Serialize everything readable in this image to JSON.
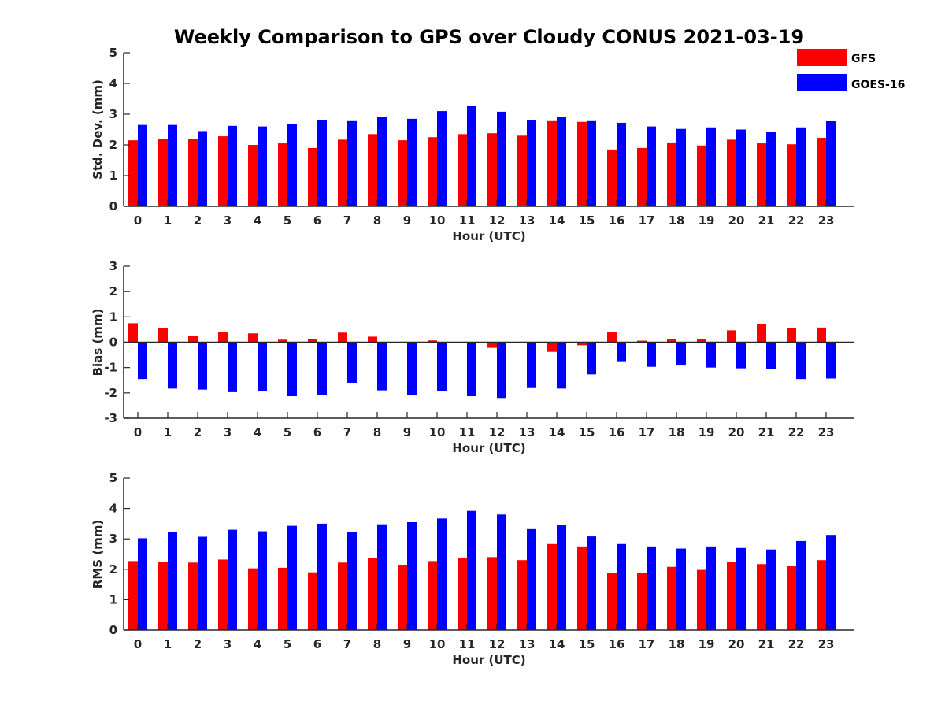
{
  "title": "Weekly Comparison to GPS over Cloudy CONUS 2021-03-19",
  "legend": [
    {
      "name": "GFS",
      "color": "#ff0000"
    },
    {
      "name": "GOES-16",
      "color": "#0000ff"
    }
  ],
  "chart_data": [
    {
      "type": "bar",
      "xlabel": "Hour (UTC)",
      "ylabel": "Std. Dev. (mm)",
      "ylim": [
        0,
        5
      ],
      "yticks": [
        0,
        1,
        2,
        3,
        4,
        5
      ],
      "categories": [
        "0",
        "1",
        "2",
        "3",
        "4",
        "5",
        "6",
        "7",
        "8",
        "9",
        "10",
        "11",
        "12",
        "13",
        "14",
        "15",
        "16",
        "17",
        "18",
        "19",
        "20",
        "21",
        "22",
        "23"
      ],
      "series": [
        {
          "name": "GFS",
          "color": "#ff0000",
          "values": [
            2.15,
            2.18,
            2.2,
            2.28,
            2.0,
            2.05,
            1.9,
            2.17,
            2.35,
            2.15,
            2.25,
            2.35,
            2.38,
            2.3,
            2.8,
            2.75,
            1.85,
            1.9,
            2.08,
            1.98,
            2.17,
            2.05,
            2.02,
            2.23
          ]
        },
        {
          "name": "GOES-16",
          "color": "#0000ff",
          "values": [
            2.65,
            2.65,
            2.45,
            2.62,
            2.6,
            2.68,
            2.82,
            2.8,
            2.92,
            2.85,
            3.1,
            3.28,
            3.08,
            2.82,
            2.92,
            2.8,
            2.72,
            2.6,
            2.52,
            2.57,
            2.5,
            2.42,
            2.57,
            2.78
          ]
        }
      ],
      "legend": "top-right"
    },
    {
      "type": "bar",
      "xlabel": "Hour (UTC)",
      "ylabel": "Bias (mm)",
      "ylim": [
        -3,
        3
      ],
      "yticks": [
        -3,
        -2,
        -1,
        0,
        1,
        2,
        3
      ],
      "categories": [
        "0",
        "1",
        "2",
        "3",
        "4",
        "5",
        "6",
        "7",
        "8",
        "9",
        "10",
        "11",
        "12",
        "13",
        "14",
        "15",
        "16",
        "17",
        "18",
        "19",
        "20",
        "21",
        "22",
        "23"
      ],
      "series": [
        {
          "name": "GFS",
          "color": "#ff0000",
          "values": [
            0.75,
            0.57,
            0.25,
            0.42,
            0.35,
            0.1,
            0.13,
            0.38,
            0.22,
            0.0,
            0.07,
            0.0,
            -0.22,
            0.0,
            -0.38,
            -0.12,
            0.4,
            0.06,
            0.13,
            0.12,
            0.47,
            0.72,
            0.55,
            0.58
          ]
        },
        {
          "name": "GOES-16",
          "color": "#0000ff",
          "values": [
            -1.45,
            -1.83,
            -1.87,
            -1.97,
            -1.92,
            -2.13,
            -2.07,
            -1.6,
            -1.9,
            -2.1,
            -1.93,
            -2.13,
            -2.2,
            -1.78,
            -1.83,
            -1.27,
            -0.75,
            -0.97,
            -0.92,
            -1.0,
            -1.03,
            -1.07,
            -1.45,
            -1.43
          ]
        }
      ]
    },
    {
      "type": "bar",
      "xlabel": "Hour (UTC)",
      "ylabel": "RMS (mm)",
      "ylim": [
        0,
        5
      ],
      "yticks": [
        0,
        1,
        2,
        3,
        4,
        5
      ],
      "categories": [
        "0",
        "1",
        "2",
        "3",
        "4",
        "5",
        "6",
        "7",
        "8",
        "9",
        "10",
        "11",
        "12",
        "13",
        "14",
        "15",
        "16",
        "17",
        "18",
        "19",
        "20",
        "21",
        "22",
        "23"
      ],
      "series": [
        {
          "name": "GFS",
          "color": "#ff0000",
          "values": [
            2.27,
            2.25,
            2.22,
            2.32,
            2.03,
            2.05,
            1.9,
            2.22,
            2.37,
            2.15,
            2.27,
            2.37,
            2.4,
            2.3,
            2.83,
            2.75,
            1.87,
            1.87,
            2.08,
            1.98,
            2.23,
            2.17,
            2.1,
            2.3
          ]
        },
        {
          "name": "GOES-16",
          "color": "#0000ff",
          "values": [
            3.02,
            3.22,
            3.07,
            3.3,
            3.25,
            3.43,
            3.5,
            3.22,
            3.48,
            3.55,
            3.67,
            3.92,
            3.8,
            3.32,
            3.45,
            3.08,
            2.83,
            2.75,
            2.68,
            2.75,
            2.7,
            2.65,
            2.93,
            3.13
          ]
        }
      ]
    }
  ]
}
